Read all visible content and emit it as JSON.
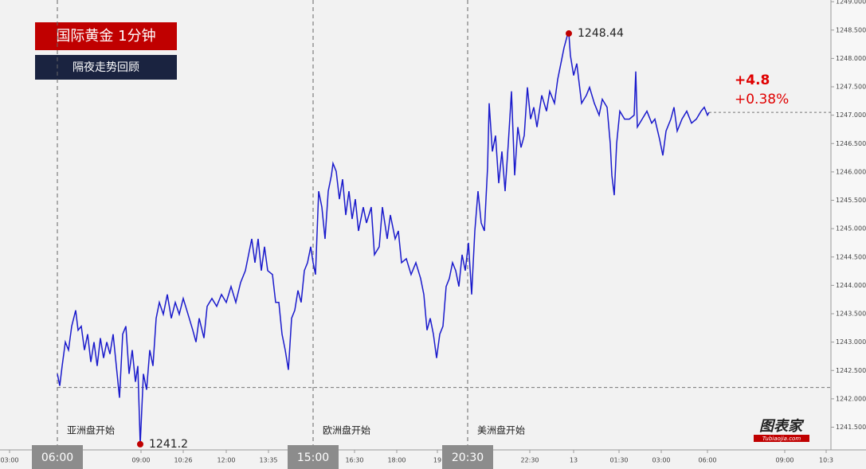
{
  "chart_data": {
    "type": "line",
    "title": "国际黄金  1分钟",
    "subtitle": "隔夜走势回顾",
    "color": "#1a1acc",
    "x": [
      72,
      75,
      78,
      82,
      86,
      90,
      95,
      98,
      102,
      106,
      110,
      114,
      118,
      122,
      126,
      130,
      134,
      138,
      142,
      146,
      150,
      154,
      158,
      162,
      166,
      170,
      173,
      176,
      180,
      184,
      188,
      192,
      196,
      200,
      205,
      210,
      215,
      220,
      225,
      230,
      236,
      242,
      246,
      250,
      256,
      260,
      266,
      272,
      278,
      284,
      290,
      296,
      302,
      308,
      312,
      316,
      320,
      324,
      328,
      332,
      336,
      342,
      346,
      350,
      354,
      358,
      362,
      366,
      370,
      374,
      378,
      382,
      386,
      390,
      393,
      396,
      400,
      404,
      408,
      412,
      416,
      418,
      422,
      426,
      430,
      434,
      438,
      442,
      446,
      450,
      456,
      460,
      466,
      470,
      476,
      480,
      486,
      490,
      496,
      500,
      504,
      510,
      516,
      522,
      528,
      532,
      536,
      540,
      544,
      548,
      552,
      556,
      560,
      564,
      568,
      572,
      576,
      580,
      584,
      588,
      592,
      596,
      600,
      604,
      608,
      612,
      614,
      618,
      622,
      626,
      630,
      634,
      638,
      642,
      646,
      650,
      654,
      658,
      662,
      666,
      670,
      674,
      680,
      686,
      690,
      696,
      700,
      704,
      708,
      712,
      714,
      716,
      720,
      724,
      730,
      736,
      740,
      746,
      752,
      756,
      762,
      766,
      768,
      771,
      774,
      778,
      784,
      790,
      796,
      798,
      800,
      806,
      812,
      818,
      822,
      828,
      832,
      836,
      842,
      846,
      850,
      856,
      862,
      868,
      874,
      880,
      884,
      888,
      890
    ],
    "values": [
      1242.44,
      1242.23,
      1242.58,
      1243.0,
      1242.86,
      1243.28,
      1243.56,
      1243.21,
      1243.28,
      1242.86,
      1243.14,
      1242.65,
      1243.0,
      1242.58,
      1243.07,
      1242.72,
      1243.0,
      1242.79,
      1243.14,
      1242.58,
      1242.02,
      1243.14,
      1243.28,
      1242.44,
      1242.86,
      1242.3,
      1242.58,
      1241.2,
      1242.44,
      1242.16,
      1242.86,
      1242.58,
      1243.42,
      1243.7,
      1243.49,
      1243.84,
      1243.42,
      1243.7,
      1243.49,
      1243.77,
      1243.49,
      1243.21,
      1243.0,
      1243.42,
      1243.07,
      1243.63,
      1243.77,
      1243.63,
      1243.84,
      1243.7,
      1243.98,
      1243.7,
      1244.05,
      1244.26,
      1244.54,
      1244.82,
      1244.4,
      1244.82,
      1244.26,
      1244.68,
      1244.26,
      1244.19,
      1243.7,
      1243.7,
      1243.14,
      1242.86,
      1242.51,
      1243.42,
      1243.56,
      1243.91,
      1243.7,
      1244.26,
      1244.4,
      1244.68,
      1244.4,
      1244.19,
      1245.66,
      1245.38,
      1244.82,
      1245.66,
      1245.94,
      1246.15,
      1246.01,
      1245.52,
      1245.87,
      1245.24,
      1245.66,
      1245.17,
      1245.52,
      1244.96,
      1245.38,
      1245.1,
      1245.38,
      1244.54,
      1244.68,
      1245.38,
      1244.82,
      1245.24,
      1244.82,
      1244.96,
      1244.4,
      1244.47,
      1244.19,
      1244.4,
      1244.12,
      1243.84,
      1243.21,
      1243.42,
      1243.14,
      1242.72,
      1243.14,
      1243.28,
      1243.98,
      1244.12,
      1244.4,
      1244.26,
      1243.98,
      1244.54,
      1244.26,
      1244.75,
      1243.84,
      1244.96,
      1245.66,
      1245.1,
      1244.96,
      1246.08,
      1247.21,
      1246.36,
      1246.64,
      1245.8,
      1246.36,
      1245.66,
      1246.5,
      1247.42,
      1245.94,
      1246.79,
      1246.43,
      1246.64,
      1247.49,
      1246.93,
      1247.14,
      1246.79,
      1247.35,
      1247.07,
      1247.42,
      1247.21,
      1247.63,
      1247.91,
      1248.19,
      1248.4,
      1248.44,
      1248.05,
      1247.7,
      1247.91,
      1247.21,
      1247.35,
      1247.49,
      1247.21,
      1247.0,
      1247.28,
      1247.14,
      1246.5,
      1245.94,
      1245.59,
      1246.5,
      1247.07,
      1246.93,
      1246.93,
      1247.0,
      1247.77,
      1246.79,
      1246.93,
      1247.07,
      1246.86,
      1246.93,
      1246.57,
      1246.29,
      1246.72,
      1246.93,
      1247.14,
      1246.72,
      1246.93,
      1247.07,
      1246.86,
      1246.93,
      1247.07,
      1247.14,
      1247.0,
      1247.05
    ],
    "xlim": [
      0,
      1043
    ],
    "ylim": [
      1241.1,
      1249.03
    ],
    "yticks": [
      {
        "value": 1241.5,
        "label": "1241.500"
      },
      {
        "value": 1242,
        "label": "1242.000"
      },
      {
        "value": 1242.5,
        "label": "1242.500"
      },
      {
        "value": 1243,
        "label": "1243.000"
      },
      {
        "value": 1243.5,
        "label": "1243.500"
      },
      {
        "value": 1244,
        "label": "1244.000"
      },
      {
        "value": 1244.5,
        "label": "1244.500"
      },
      {
        "value": 1245,
        "label": "1245.000"
      },
      {
        "value": 1245.5,
        "label": "1245.500"
      },
      {
        "value": 1246,
        "label": "1246.000"
      },
      {
        "value": 1246.5,
        "label": "1246.500"
      },
      {
        "value": 1247,
        "label": "1247.000"
      },
      {
        "value": 1247.5,
        "label": "1247.500"
      },
      {
        "value": 1248,
        "label": "1248.000"
      },
      {
        "value": 1248.5,
        "label": "1248.500"
      },
      {
        "value": 1249,
        "label": "1249.000"
      }
    ],
    "xticks": [
      {
        "value": 12,
        "label": "03:00"
      },
      {
        "value": 177,
        "label": "09:00"
      },
      {
        "value": 230,
        "label": "10:26"
      },
      {
        "value": 284,
        "label": "12:00"
      },
      {
        "value": 337,
        "label": "13:35"
      },
      {
        "value": 445,
        "label": "16:30"
      },
      {
        "value": 498,
        "label": "18:00"
      },
      {
        "value": 549,
        "label": "19"
      },
      {
        "value": 665,
        "label": "22:30"
      },
      {
        "value": 720,
        "label": "13"
      },
      {
        "value": 777,
        "label": "01:30"
      },
      {
        "value": 830,
        "label": "03:00"
      },
      {
        "value": 888,
        "label": "06:00"
      },
      {
        "value": 985,
        "label": "09:00"
      },
      {
        "value": 1037,
        "label": "10:3"
      }
    ],
    "sessions": [
      {
        "x": 72,
        "tick": "06:00",
        "label": "亚洲盘开始"
      },
      {
        "x": 393,
        "tick": "15:00",
        "label": "欧洲盘开始"
      },
      {
        "x": 587,
        "tick": "20:30",
        "label": "美洲盘开始"
      }
    ],
    "high": {
      "x": 714,
      "value": 1248.44
    },
    "low": {
      "x": 176,
      "value": 1241.2
    },
    "open_line": 1242.2,
    "last_line": 1247.05,
    "change": "+4.8",
    "change_pct": "+0.38%",
    "watermark": {
      "name": "图表家",
      "url": "Tubiaojia.com"
    }
  }
}
